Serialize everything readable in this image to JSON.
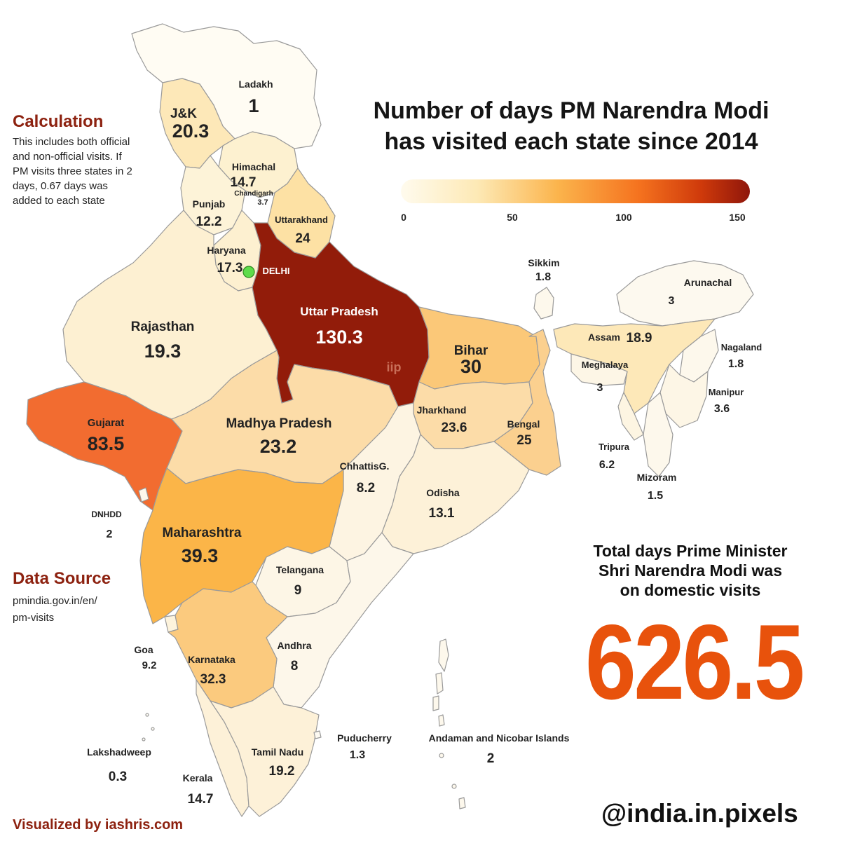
{
  "title_line1": "Number of days PM Narendra Modi",
  "title_line2": "has visited each state since 2014",
  "legend": {
    "ticks": [
      "0",
      "50",
      "100",
      "150"
    ],
    "min": 0,
    "max": 150,
    "colors": [
      "#fffbee",
      "#fde9b5",
      "#fbb44c",
      "#f5731f",
      "#cf3a0b",
      "#8f160b"
    ]
  },
  "calculation": {
    "heading": "Calculation",
    "lines": [
      "This includes both official",
      "and non-official visits. If",
      "PM visits three states in 2",
      "days, 0.67 days was",
      "added to each state"
    ]
  },
  "data_source": {
    "heading": "Data Source",
    "lines": [
      "pmindia.gov.in/en/",
      "pm-visits"
    ]
  },
  "total": {
    "lines": [
      "Total days Prime Minister",
      "Shri Narendra Modi was",
      "on domestic visits"
    ],
    "value": "626.5"
  },
  "handle": "@india.in.pixels",
  "credit": "Visualized by iashris.com",
  "watermark": "iip",
  "delhi_label": "DELHI",
  "states": [
    {
      "name": "Ladakh",
      "value": "1"
    },
    {
      "name": "J&K",
      "value": "20.3"
    },
    {
      "name": "Himachal",
      "value": "14.7"
    },
    {
      "name": "Chandigarh",
      "value": "3.7"
    },
    {
      "name": "Punjab",
      "value": "12.2"
    },
    {
      "name": "Uttarakhand",
      "value": "24"
    },
    {
      "name": "Haryana",
      "value": "17.3"
    },
    {
      "name": "Uttar Pradesh",
      "value": "130.3"
    },
    {
      "name": "Rajasthan",
      "value": "19.3"
    },
    {
      "name": "Bihar",
      "value": "30"
    },
    {
      "name": "Gujarat",
      "value": "83.5"
    },
    {
      "name": "Madhya Pradesh",
      "value": "23.2"
    },
    {
      "name": "Jharkhand",
      "value": "23.6"
    },
    {
      "name": "Bengal",
      "value": "25"
    },
    {
      "name": "ChhattisG.",
      "value": "8.2"
    },
    {
      "name": "Odisha",
      "value": "13.1"
    },
    {
      "name": "DNHDD",
      "value": "2"
    },
    {
      "name": "Maharashtra",
      "value": "39.3"
    },
    {
      "name": "Telangana",
      "value": "9"
    },
    {
      "name": "Goa",
      "value": "9.2"
    },
    {
      "name": "Andhra",
      "value": "8"
    },
    {
      "name": "Karnataka",
      "value": "32.3"
    },
    {
      "name": "Puducherry",
      "value": "1.3"
    },
    {
      "name": "Lakshadweep",
      "value": "0.3"
    },
    {
      "name": "Tamil Nadu",
      "value": "19.2"
    },
    {
      "name": "Kerala",
      "value": "14.7"
    },
    {
      "name": "Andaman and Nicobar Islands",
      "value": "2"
    },
    {
      "name": "Sikkim",
      "value": "1.8"
    },
    {
      "name": "Arunachal",
      "value": "3"
    },
    {
      "name": "Assam",
      "value": "18.9"
    },
    {
      "name": "Nagaland",
      "value": "1.8"
    },
    {
      "name": "Meghalaya",
      "value": "3"
    },
    {
      "name": "Manipur",
      "value": "3.6"
    },
    {
      "name": "Tripura",
      "value": "6.2"
    },
    {
      "name": "Mizoram",
      "value": "1.5"
    }
  ]
}
